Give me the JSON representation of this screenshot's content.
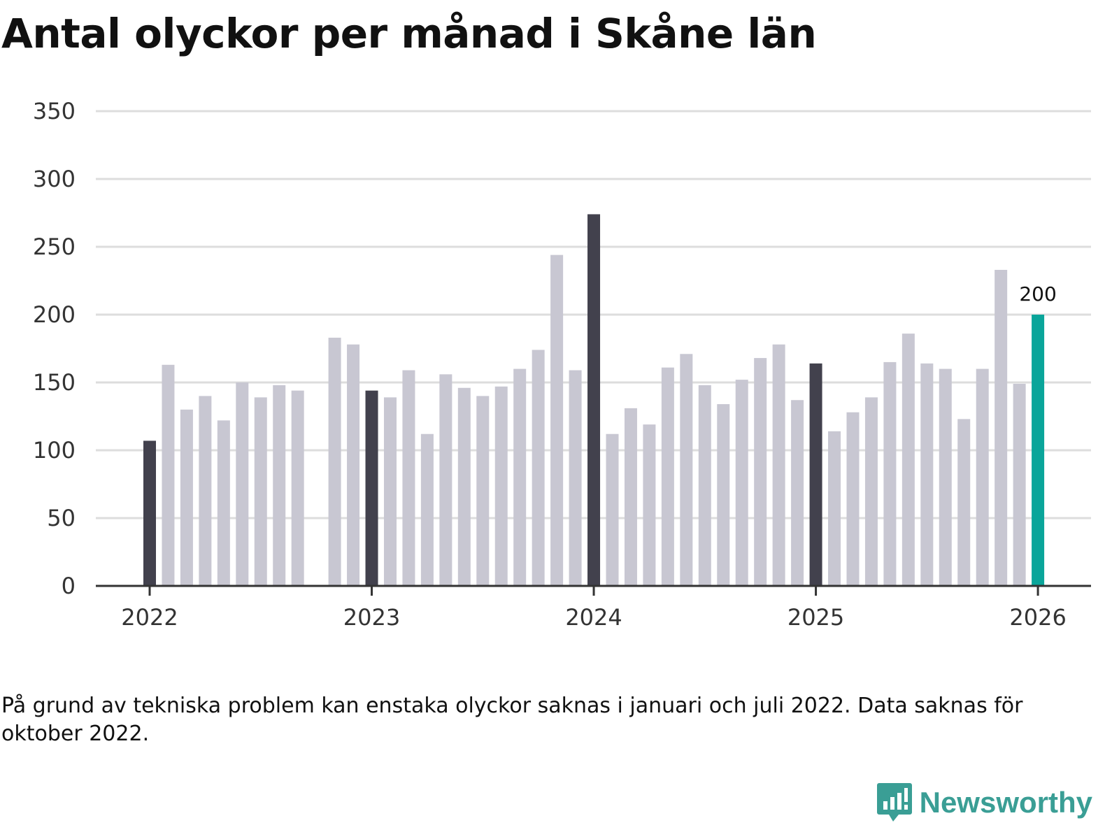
{
  "title": "Antal olyckor per månad i Skåne län",
  "footnote": "På grund av tekniska problem kan enstaka olyckor saknas i januari och juli 2022. Data saknas för oktober 2022.",
  "brand": {
    "name": "Newsworthy",
    "icon": "newsworthy-logo-icon"
  },
  "colors": {
    "highlight": "#42414d",
    "regular": "#c8c7d2",
    "latest": "#0aa59a",
    "grid": "#dddddd",
    "axis": "#333333"
  },
  "chart_data": {
    "type": "bar",
    "title": "Antal olyckor per månad i Skåne län",
    "xlabel": "",
    "ylabel": "",
    "ylim": [
      0,
      350
    ],
    "yticks": [
      0,
      50,
      100,
      150,
      200,
      250,
      300,
      350
    ],
    "xticks": [
      {
        "label": "2022",
        "index": 0
      },
      {
        "label": "2023",
        "index": 12
      },
      {
        "label": "2024",
        "index": 24
      },
      {
        "label": "2025",
        "index": 36
      },
      {
        "label": "2026",
        "index": 48
      }
    ],
    "values": [
      107,
      163,
      130,
      140,
      122,
      150,
      139,
      148,
      144,
      null,
      183,
      178,
      144,
      139,
      159,
      112,
      156,
      146,
      140,
      147,
      160,
      174,
      244,
      159,
      274,
      112,
      131,
      119,
      161,
      171,
      148,
      134,
      152,
      168,
      178,
      137,
      164,
      114,
      128,
      139,
      165,
      186,
      164,
      160,
      123,
      160,
      233,
      149,
      200
    ],
    "highlight_indices": [
      0,
      12,
      24,
      36
    ],
    "latest_index": 48,
    "annotations": [
      {
        "index": 48,
        "text": "200"
      }
    ]
  }
}
